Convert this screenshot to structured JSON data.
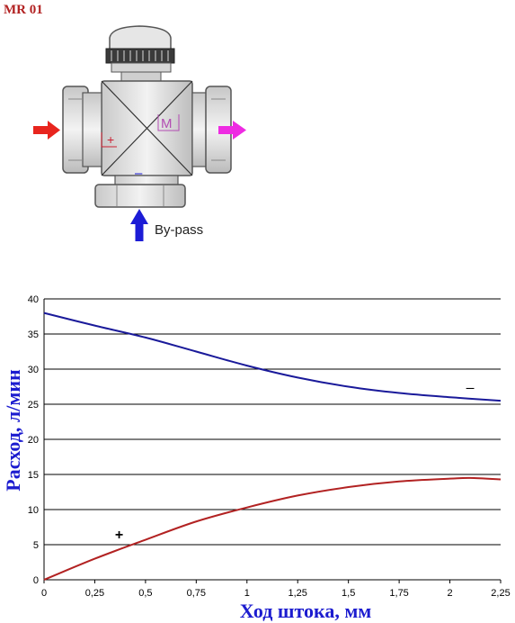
{
  "header": {
    "model": "MR 01"
  },
  "valve": {
    "label_plus": "+",
    "label_minus": "–",
    "label_m": "M",
    "bypass": "By-pass",
    "colors": {
      "inlet_arrow": "#e8251e",
      "outlet_arrow": "#ee2be2",
      "bypass_arrow": "#1c1cd6",
      "marker": "#cc2233",
      "m_marker": "#b34db3"
    }
  },
  "chart_data": {
    "type": "line",
    "xlabel": "Ход штока, мм",
    "ylabel": "Расход, л/мин",
    "xlim": [
      0,
      2.25
    ],
    "ylim": [
      0,
      40
    ],
    "x_ticks": [
      "0",
      "0,25",
      "0,5",
      "0,75",
      "1",
      "1,25",
      "1,5",
      "1,75",
      "2",
      "2,25"
    ],
    "y_ticks": [
      "0",
      "5",
      "10",
      "15",
      "20",
      "25",
      "30",
      "35",
      "40"
    ],
    "grid": true,
    "series": [
      {
        "name": "–",
        "color": "#1a1a9a",
        "points": [
          [
            0,
            38
          ],
          [
            0.25,
            36.2
          ],
          [
            0.5,
            34.5
          ],
          [
            0.75,
            32.5
          ],
          [
            1,
            30.5
          ],
          [
            1.25,
            28.8
          ],
          [
            1.5,
            27.5
          ],
          [
            1.75,
            26.6
          ],
          [
            2,
            26
          ],
          [
            2.25,
            25.5
          ]
        ]
      },
      {
        "name": "+",
        "color": "#b22222",
        "points": [
          [
            0,
            0
          ],
          [
            0.25,
            3
          ],
          [
            0.5,
            5.7
          ],
          [
            0.75,
            8.3
          ],
          [
            1,
            10.3
          ],
          [
            1.25,
            12
          ],
          [
            1.5,
            13.2
          ],
          [
            1.75,
            14
          ],
          [
            2,
            14.4
          ],
          [
            2.1,
            14.5
          ],
          [
            2.25,
            14.3
          ]
        ]
      }
    ],
    "label_color": "#1c1ccf"
  }
}
